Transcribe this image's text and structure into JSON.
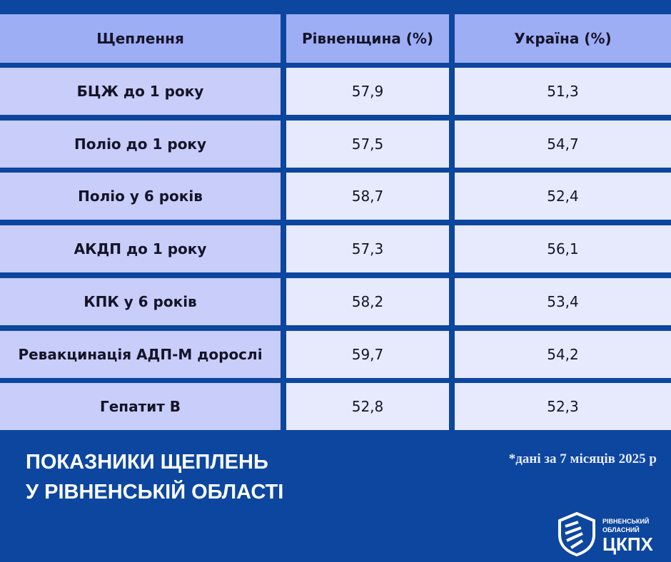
{
  "table": {
    "header": [
      "Щеплення",
      "Рівненщина (%)",
      "Україна (%)"
    ],
    "rows": [
      [
        "БЦЖ до 1 року",
        "57,9",
        "51,3"
      ],
      [
        "Поліо до 1 року",
        "57,5",
        "54,7"
      ],
      [
        "Поліо у 6 років",
        "58,7",
        "52,4"
      ],
      [
        "АКДП до 1 року",
        "57,3",
        "56,1"
      ],
      [
        "КПК у 6 років",
        "58,2",
        "53,4"
      ],
      [
        "Ревакцинація АДП-М дорослі",
        "59,7",
        "54,2"
      ],
      [
        "Гепатит В",
        "52,8",
        "52,3"
      ]
    ]
  },
  "title": [
    "ПОКАЗНИКИ ЩЕПЛЕНЬ",
    "У РІВНЕНСЬКІЙ ОБЛАСТІ"
  ],
  "footnote": "*дані за 7 місяців 2025 р",
  "logo": {
    "small": [
      "РІВНЕНСЬКИЙ",
      "ОБЛАСНИЙ"
    ],
    "big": "ЦКПХ"
  }
}
